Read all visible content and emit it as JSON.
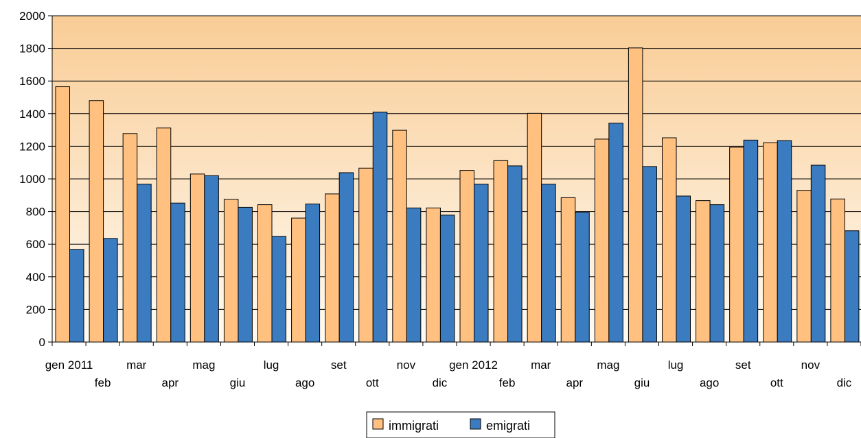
{
  "chart_data": {
    "type": "bar",
    "categories": [
      "gen 2011",
      "feb",
      "mar",
      "apr",
      "mag",
      "giu",
      "lug",
      "ago",
      "set",
      "ott",
      "nov",
      "dic",
      "gen 2012",
      "feb",
      "mar",
      "apr",
      "mag",
      "giu",
      "lug",
      "ago",
      "set",
      "ott",
      "nov",
      "dic"
    ],
    "series": [
      {
        "name": "immigrati",
        "color": "#FFC080",
        "values": [
          1565,
          1480,
          1278,
          1312,
          1030,
          875,
          842,
          760,
          908,
          1066,
          1298,
          822,
          1052,
          1112,
          1402,
          885,
          1244,
          1803,
          1252,
          867,
          1194,
          1222,
          930,
          877
        ]
      },
      {
        "name": "emigrati",
        "color": "#3B7CC0",
        "values": [
          568,
          635,
          968,
          852,
          1020,
          826,
          648,
          846,
          1038,
          1410,
          822,
          778,
          968,
          1080,
          968,
          795,
          1342,
          1076,
          895,
          842,
          1238,
          1235,
          1084,
          682
        ]
      }
    ],
    "ylim": [
      0,
      2000
    ],
    "yticks": [
      "0",
      "200",
      "400",
      "600",
      "800",
      "1000",
      "1200",
      "1400",
      "1600",
      "1800",
      "2000"
    ],
    "grid": true,
    "legend_position": "bottom"
  }
}
